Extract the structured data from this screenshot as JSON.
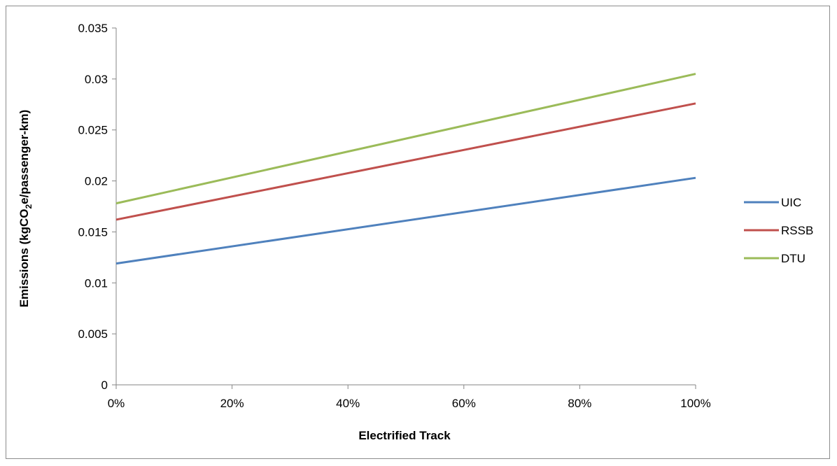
{
  "chart_data": {
    "type": "line",
    "x": [
      0,
      100
    ],
    "x_tick_labels": [
      "0%",
      "20%",
      "40%",
      "60%",
      "80%",
      "100%"
    ],
    "x_ticks": [
      0,
      20,
      40,
      60,
      80,
      100
    ],
    "xlim": [
      0,
      100
    ],
    "y_tick_labels": [
      "0",
      "0.005",
      "0.01",
      "0.015",
      "0.02",
      "0.025",
      "0.03",
      "0.035"
    ],
    "y_ticks": [
      0,
      0.005,
      0.01,
      0.015,
      0.02,
      0.025,
      0.03,
      0.035
    ],
    "ylim": [
      0,
      0.035
    ],
    "xlabel": "Electrified Track",
    "ylabel_prefix": "Emissions (kgCO",
    "ylabel_sub": "2",
    "ylabel_suffix": "e/passenger-km)",
    "grid": false,
    "legend_position": "right",
    "series": [
      {
        "name": "UIC",
        "color": "#4f81bd",
        "values": [
          0.0119,
          0.0203
        ]
      },
      {
        "name": "RSSB",
        "color": "#c0504d",
        "values": [
          0.0162,
          0.0276
        ]
      },
      {
        "name": "DTU",
        "color": "#9bbb59",
        "values": [
          0.0178,
          0.0305
        ]
      }
    ]
  }
}
